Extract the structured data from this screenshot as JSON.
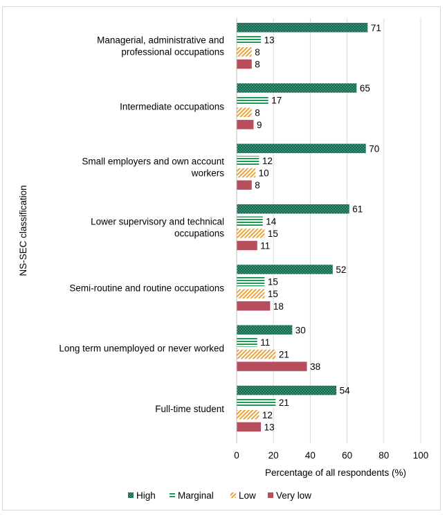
{
  "chart_data": {
    "type": "bar",
    "orientation": "horizontal",
    "title": "",
    "xlabel": "Percentage of all respondents (%)",
    "ylabel": "NS-SEC classification",
    "xlim": [
      0,
      100
    ],
    "xticks": [
      0,
      20,
      40,
      60,
      80,
      100
    ],
    "grid": true,
    "legend_position": "bottom",
    "categories": [
      [
        "Managerial, administrative and",
        "professional occupations"
      ],
      [
        "Intermediate occupations"
      ],
      [
        "Small employers and own account",
        "workers"
      ],
      [
        "Lower supervisory and technical",
        "occupations"
      ],
      [
        "Semi-routine and routine occupations"
      ],
      [
        "Long term unemployed or never worked"
      ],
      [
        "Full-time student"
      ]
    ],
    "series": [
      {
        "name": "High",
        "color": "#0f6b4f",
        "pattern": "dots",
        "values": [
          71,
          65,
          70,
          61,
          52,
          30,
          54
        ]
      },
      {
        "name": "Marginal",
        "color": "#1f9a57",
        "pattern": "horizontal-lines",
        "values": [
          13,
          17,
          12,
          14,
          15,
          11,
          21
        ]
      },
      {
        "name": "Low",
        "color": "#e8a33d",
        "pattern": "diagonal-lines",
        "values": [
          8,
          8,
          10,
          15,
          15,
          21,
          12
        ]
      },
      {
        "name": "Very low",
        "color": "#b84d5c",
        "pattern": "solid",
        "values": [
          8,
          9,
          8,
          11,
          18,
          38,
          13
        ]
      }
    ]
  }
}
